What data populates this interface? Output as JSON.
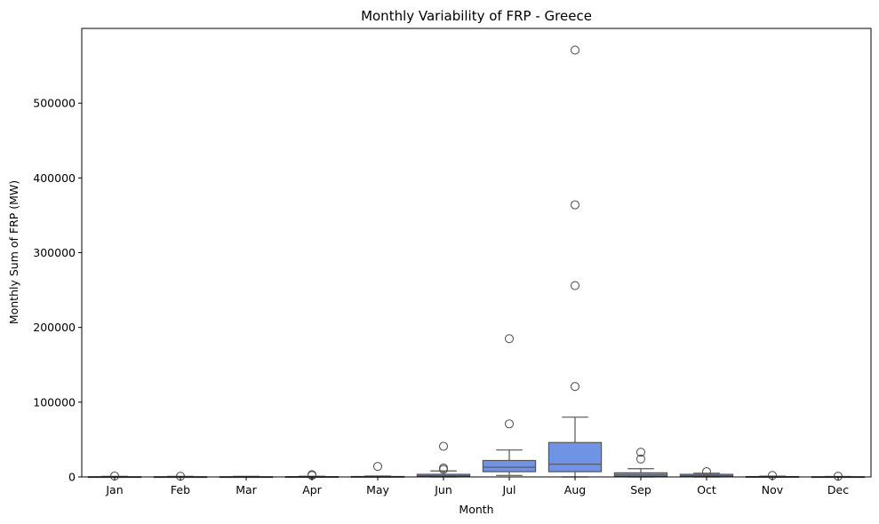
{
  "chart_data": {
    "type": "box",
    "title": "Monthly Variability of FRP - Greece",
    "xlabel": "Month",
    "ylabel": "Monthly Sum of FRP (MW)",
    "ylim": [
      0,
      600000
    ],
    "yticks": [
      0,
      100000,
      200000,
      300000,
      400000,
      500000
    ],
    "ytick_labels": [
      "0",
      "100000",
      "200000",
      "300000",
      "400000",
      "500000"
    ],
    "grid": false,
    "legend": "none",
    "box_color": "#6f94e6",
    "line_color": "#555555",
    "categories": [
      "Jan",
      "Feb",
      "Mar",
      "Apr",
      "May",
      "Jun",
      "Jul",
      "Aug",
      "Sep",
      "Oct",
      "Nov",
      "Dec"
    ],
    "boxes": [
      {
        "category": "Jan",
        "whisker_low": 0,
        "q1": 0,
        "median": 100,
        "q3": 300,
        "whisker_high": 700,
        "outliers": [
          1200
        ]
      },
      {
        "category": "Feb",
        "whisker_low": 0,
        "q1": 0,
        "median": 100,
        "q3": 300,
        "whisker_high": 700,
        "outliers": [
          1000
        ]
      },
      {
        "category": "Mar",
        "whisker_low": 0,
        "q1": 0,
        "median": 100,
        "q3": 300,
        "whisker_high": 700,
        "outliers": []
      },
      {
        "category": "Apr",
        "whisker_low": 0,
        "q1": 0,
        "median": 100,
        "q3": 400,
        "whisker_high": 900,
        "outliers": [
          2000,
          3000
        ]
      },
      {
        "category": "May",
        "whisker_low": 0,
        "q1": 0,
        "median": 200,
        "q3": 600,
        "whisker_high": 1200,
        "outliers": [
          14000
        ]
      },
      {
        "category": "Jun",
        "whisker_low": 0,
        "q1": 500,
        "median": 1500,
        "q3": 3500,
        "whisker_high": 8000,
        "outliers": [
          10000,
          12000,
          41000
        ]
      },
      {
        "category": "Jul",
        "whisker_low": 2000,
        "q1": 7000,
        "median": 13000,
        "q3": 22000,
        "whisker_high": 36000,
        "outliers": [
          71000,
          185000
        ]
      },
      {
        "category": "Aug",
        "whisker_low": 0,
        "q1": 7000,
        "median": 17000,
        "q3": 46000,
        "whisker_high": 80000,
        "outliers": [
          121000,
          256000,
          364000,
          571000
        ]
      },
      {
        "category": "Sep",
        "whisker_low": 0,
        "q1": 500,
        "median": 2500,
        "q3": 5500,
        "whisker_high": 11000,
        "outliers": [
          24000,
          33000
        ]
      },
      {
        "category": "Oct",
        "whisker_low": 0,
        "q1": 500,
        "median": 1500,
        "q3": 3500,
        "whisker_high": 5000,
        "outliers": [
          7000
        ]
      },
      {
        "category": "Nov",
        "whisker_low": 0,
        "q1": 0,
        "median": 200,
        "q3": 500,
        "whisker_high": 1000,
        "outliers": [
          2000
        ]
      },
      {
        "category": "Dec",
        "whisker_low": 0,
        "q1": 0,
        "median": 100,
        "q3": 300,
        "whisker_high": 600,
        "outliers": [
          1000
        ]
      }
    ]
  }
}
